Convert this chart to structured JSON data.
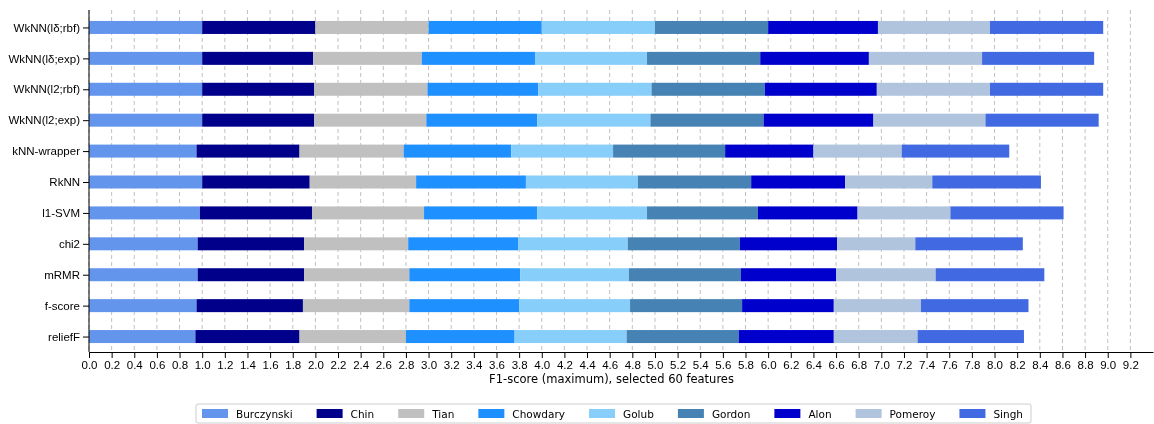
{
  "chart_data": {
    "type": "bar",
    "orientation": "horizontal",
    "stacked": true,
    "xlabel": "F1-score (maximum), selected 60 features",
    "categories": [
      "WkNN(lδ;rbf)",
      "WkNN(lδ;exp)",
      "WkNN(l2;rbf)",
      "WkNN(l2;exp)",
      "kNN-wrapper",
      "RkNN",
      "l1-SVM",
      "chi2",
      "mRMR",
      "f-score",
      "reliefF"
    ],
    "series": [
      {
        "name": "Burczynski",
        "color": "#6495ed",
        "values": [
          1.0,
          1.0,
          1.0,
          1.0,
          0.95,
          1.0,
          0.98,
          0.96,
          0.96,
          0.95,
          0.94
        ]
      },
      {
        "name": "Chin",
        "color": "#00008b",
        "values": [
          1.0,
          0.98,
          0.99,
          0.99,
          0.91,
          0.95,
          0.99,
          0.94,
          0.94,
          0.94,
          0.92
        ]
      },
      {
        "name": "Tian",
        "color": "#c0c0c0",
        "values": [
          1.0,
          0.96,
          1.0,
          0.99,
          0.92,
          0.94,
          0.99,
          0.92,
          0.93,
          0.94,
          0.94
        ]
      },
      {
        "name": "Chowdary",
        "color": "#1e90ff",
        "values": [
          1.0,
          1.0,
          0.98,
          0.98,
          0.95,
          0.97,
          1.0,
          0.97,
          0.98,
          0.97,
          0.96
        ]
      },
      {
        "name": "Golub",
        "color": "#87cefa",
        "values": [
          1.0,
          0.99,
          1.0,
          1.0,
          0.9,
          0.99,
          0.97,
          0.97,
          0.96,
          0.98,
          0.99
        ]
      },
      {
        "name": "Gordon",
        "color": "#4682b4",
        "values": [
          1.0,
          1.0,
          1.0,
          1.0,
          0.99,
          1.0,
          0.98,
          0.99,
          0.99,
          0.99,
          0.99
        ]
      },
      {
        "name": "Alon",
        "color": "#0000cd",
        "values": [
          0.97,
          0.96,
          0.99,
          0.97,
          0.78,
          0.83,
          0.88,
          0.86,
          0.84,
          0.81,
          0.84
        ]
      },
      {
        "name": "Pomeroy",
        "color": "#b0c4de",
        "values": [
          0.99,
          1.0,
          1.0,
          0.99,
          0.78,
          0.77,
          0.82,
          0.69,
          0.88,
          0.77,
          0.74
        ]
      },
      {
        "name": "Singh",
        "color": "#4169e1",
        "values": [
          1.0,
          0.99,
          1.0,
          1.0,
          0.95,
          0.96,
          1.0,
          0.95,
          0.96,
          0.95,
          0.94
        ]
      }
    ],
    "xlim": [
      0,
      9.4
    ],
    "xticks": [
      {
        "value": 0,
        "label": "0.0"
      },
      0.2,
      0.4,
      0.6,
      0.8,
      {
        "value": 1,
        "label": "1.0"
      },
      1.2,
      1.4,
      1.6,
      1.8,
      {
        "value": 2,
        "label": "2.0"
      },
      2.2,
      2.4,
      2.6,
      2.8,
      {
        "value": 3,
        "label": "3.0"
      },
      3.2,
      3.4,
      3.6,
      3.8,
      {
        "value": 4,
        "label": "4.0"
      },
      4.2,
      4.4,
      4.6,
      4.8,
      {
        "value": 5,
        "label": "5.0"
      },
      5.2,
      5.4,
      5.6,
      5.8,
      {
        "value": 6,
        "label": "6.0"
      },
      6.2,
      6.4,
      6.6,
      6.8,
      {
        "value": 7,
        "label": "7.0"
      },
      7.2,
      7.4,
      7.6,
      7.8,
      {
        "value": 8,
        "label": "8.0"
      },
      8.2,
      8.4,
      8.6,
      8.8,
      {
        "value": 9,
        "label": "9.0"
      },
      9.2
    ],
    "grid": "x",
    "line_style": "dashed",
    "legend": "bottom"
  }
}
